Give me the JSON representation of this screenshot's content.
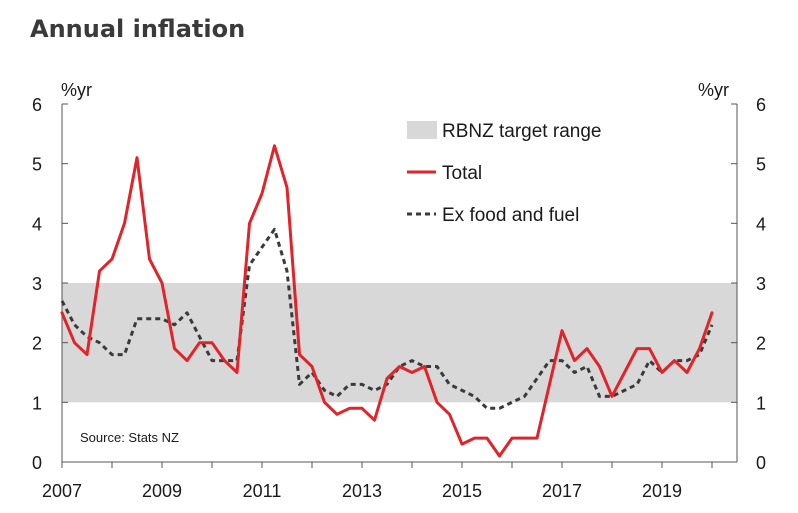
{
  "chart_data": {
    "type": "line",
    "title": "Annual inflation",
    "ylabel_left": "%yr",
    "ylabel_right": "%yr",
    "ylim": [
      0,
      6
    ],
    "yticks": [
      0,
      1,
      2,
      3,
      4,
      5,
      6
    ],
    "xlim": [
      2007,
      2020.5
    ],
    "xticks": [
      2007,
      2009,
      2011,
      2013,
      2015,
      2017,
      2019
    ],
    "target_range": {
      "name": "RBNZ target range",
      "low": 1,
      "high": 3,
      "color": "#d9d8d8"
    },
    "series": [
      {
        "name": "Total",
        "color": "#e0242a",
        "style": "solid",
        "x": [
          2007.0,
          2007.25,
          2007.5,
          2007.75,
          2008.0,
          2008.25,
          2008.5,
          2008.75,
          2009.0,
          2009.25,
          2009.5,
          2009.75,
          2010.0,
          2010.25,
          2010.5,
          2010.75,
          2011.0,
          2011.25,
          2011.5,
          2011.75,
          2012.0,
          2012.25,
          2012.5,
          2012.75,
          2013.0,
          2013.25,
          2013.5,
          2013.75,
          2014.0,
          2014.25,
          2014.5,
          2014.75,
          2015.0,
          2015.25,
          2015.5,
          2015.75,
          2016.0,
          2016.25,
          2016.5,
          2016.75,
          2017.0,
          2017.25,
          2017.5,
          2017.75,
          2018.0,
          2018.25,
          2018.5,
          2018.75,
          2019.0,
          2019.25,
          2019.5,
          2019.75,
          2020.0
        ],
        "values": [
          2.5,
          2.0,
          1.8,
          3.2,
          3.4,
          4.0,
          5.1,
          3.4,
          3.0,
          1.9,
          1.7,
          2.0,
          2.0,
          1.7,
          1.5,
          4.0,
          4.5,
          5.3,
          4.6,
          1.8,
          1.6,
          1.0,
          0.8,
          0.9,
          0.9,
          0.7,
          1.4,
          1.6,
          1.5,
          1.6,
          1.0,
          0.8,
          0.3,
          0.4,
          0.4,
          0.1,
          0.4,
          0.4,
          0.4,
          1.3,
          2.2,
          1.7,
          1.9,
          1.6,
          1.1,
          1.5,
          1.9,
          1.9,
          1.5,
          1.7,
          1.5,
          1.9,
          2.5
        ]
      },
      {
        "name": "Ex food and fuel",
        "color": "#3a3a3a",
        "style": "dashed",
        "x": [
          2007.0,
          2007.25,
          2007.5,
          2007.75,
          2008.0,
          2008.25,
          2008.5,
          2008.75,
          2009.0,
          2009.25,
          2009.5,
          2009.75,
          2010.0,
          2010.25,
          2010.5,
          2010.75,
          2011.0,
          2011.25,
          2011.5,
          2011.75,
          2012.0,
          2012.25,
          2012.5,
          2012.75,
          2013.0,
          2013.25,
          2013.5,
          2013.75,
          2014.0,
          2014.25,
          2014.5,
          2014.75,
          2015.0,
          2015.25,
          2015.5,
          2015.75,
          2016.0,
          2016.25,
          2016.5,
          2016.75,
          2017.0,
          2017.25,
          2017.5,
          2017.75,
          2018.0,
          2018.25,
          2018.5,
          2018.75,
          2019.0,
          2019.25,
          2019.5,
          2019.75,
          2020.0
        ],
        "values": [
          2.7,
          2.3,
          2.1,
          2.0,
          1.8,
          1.8,
          2.4,
          2.4,
          2.4,
          2.3,
          2.5,
          2.1,
          1.7,
          1.7,
          1.7,
          3.3,
          3.6,
          3.9,
          3.2,
          1.3,
          1.5,
          1.2,
          1.1,
          1.3,
          1.3,
          1.2,
          1.3,
          1.6,
          1.7,
          1.6,
          1.6,
          1.3,
          1.2,
          1.1,
          0.9,
          0.9,
          1.0,
          1.1,
          1.4,
          1.7,
          1.7,
          1.5,
          1.6,
          1.1,
          1.1,
          1.2,
          1.3,
          1.7,
          1.5,
          1.7,
          1.7,
          1.8,
          2.3
        ]
      }
    ],
    "legend": [
      "RBNZ target range",
      "Total",
      "Ex food and fuel"
    ],
    "legend_position": "top-right",
    "annotation": "Source: Stats NZ"
  }
}
